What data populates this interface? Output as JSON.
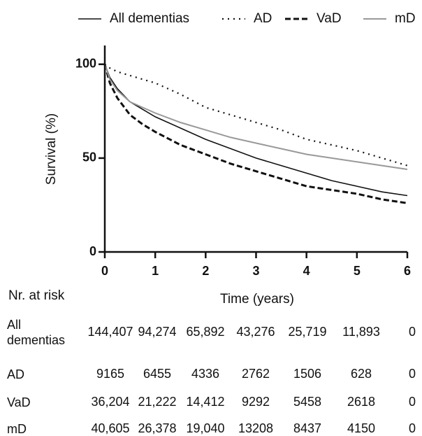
{
  "chart_data": {
    "type": "line",
    "x": [
      0,
      0.1,
      0.25,
      0.5,
      0.75,
      1,
      1.5,
      2,
      2.5,
      3,
      3.5,
      4,
      4.5,
      5,
      5.5,
      6
    ],
    "series": [
      {
        "name": "All dementias",
        "color": "#111111",
        "style": "solid",
        "values": [
          100,
          93,
          87,
          80,
          76,
          72,
          66,
          60,
          55,
          50,
          46,
          42,
          38,
          35,
          32,
          30
        ]
      },
      {
        "name": "AD",
        "color": "#111111",
        "style": "dotted",
        "values": [
          100,
          98,
          96,
          94,
          92,
          90,
          84,
          77,
          73,
          69,
          65,
          60,
          57,
          54,
          50,
          46
        ]
      },
      {
        "name": "VaD",
        "color": "#111111",
        "style": "dashed",
        "values": [
          100,
          90,
          82,
          73,
          68,
          64,
          57,
          52,
          47,
          43,
          39,
          35,
          33,
          31,
          28,
          26
        ]
      },
      {
        "name": "mD",
        "color": "#999999",
        "style": "solid",
        "values": [
          100,
          92,
          86,
          80,
          77,
          74,
          69,
          65,
          61,
          58,
          55,
          52,
          50,
          48,
          46,
          44
        ]
      }
    ],
    "xlim": [
      0,
      6
    ],
    "xticks": [
      0,
      1,
      2,
      3,
      4,
      5,
      6
    ],
    "ylim": [
      0,
      110
    ],
    "yticks": [
      0,
      50,
      100
    ],
    "x_label": "Time (years)",
    "y_label": "Survival (%)",
    "legend": "top"
  },
  "risk_table": {
    "title": "Nr. at risk",
    "rows": [
      {
        "label": "All dementias",
        "values": [
          "144,407",
          "94,274",
          "65,892",
          "43,276",
          "25,719",
          "11,893",
          "0"
        ]
      },
      {
        "label": "AD",
        "values": [
          "9165",
          "6455",
          "4336",
          "2762",
          "1506",
          "628",
          "0"
        ]
      },
      {
        "label": "VaD",
        "values": [
          "36,204",
          "21,222",
          "14,412",
          "9292",
          "5458",
          "2618",
          "0"
        ]
      },
      {
        "label": "mD",
        "values": [
          "40,605",
          "26,378",
          "19,040",
          "13208",
          "8437",
          "4150",
          "0"
        ]
      }
    ]
  }
}
